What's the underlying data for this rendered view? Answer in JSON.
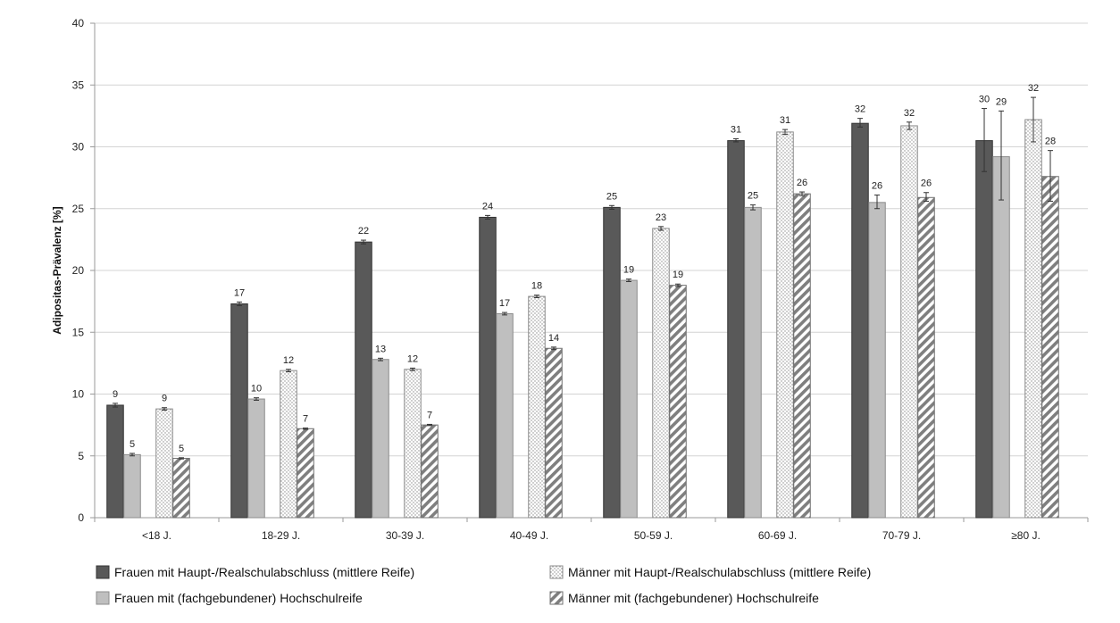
{
  "chart_data": {
    "type": "bar",
    "title": "",
    "xlabel": "",
    "ylabel": "Adipositas-Prävalenz [%]",
    "ylim": [
      0,
      40
    ],
    "yticks": [
      0,
      5,
      10,
      15,
      20,
      25,
      30,
      35,
      40
    ],
    "grid": true,
    "legend_position": "bottom",
    "categories": [
      "<18 J.",
      "18-29 J.",
      "30-39 J.",
      "40-49 J.",
      "50-59 J.",
      "60-69 J.",
      "70-79 J.",
      "≥80 J."
    ],
    "series": [
      {
        "name": "Frauen mit Haupt-/Realschulabschluss (mittlere Reife)",
        "pattern": "solid-dark",
        "color": "#595959",
        "values": [
          9.1,
          17.3,
          22.3,
          24.3,
          25.1,
          30.5,
          31.9,
          30.5
        ],
        "labels": [
          "9",
          "17",
          "22",
          "24",
          "25",
          "31",
          "32",
          "30"
        ],
        "err_low": [
          8.95,
          17.15,
          22.15,
          24.15,
          24.95,
          30.4,
          31.6,
          28.0
        ],
        "err_high": [
          9.25,
          17.45,
          22.45,
          24.45,
          25.25,
          30.65,
          32.3,
          33.1
        ]
      },
      {
        "name": "Frauen mit (fachgebundener) Hochschulreife",
        "pattern": "solid-light",
        "color": "#bfbfbf",
        "values": [
          5.1,
          9.6,
          12.8,
          16.5,
          19.2,
          25.1,
          25.5,
          29.2
        ],
        "labels": [
          "5",
          "10",
          "13",
          "17",
          "19",
          "25",
          "26",
          "29"
        ],
        "err_low": [
          5.0,
          9.5,
          12.7,
          16.4,
          19.1,
          24.9,
          25.0,
          25.7
        ],
        "err_high": [
          5.2,
          9.7,
          12.9,
          16.6,
          19.3,
          25.3,
          26.1,
          32.9
        ]
      },
      {
        "name": "Männer mit Haupt-/Realschulabschluss (mittlere Reife)",
        "pattern": "dotted",
        "color": "#ffffff",
        "values": [
          8.8,
          11.9,
          12.0,
          17.9,
          23.4,
          31.2,
          31.7,
          32.2
        ],
        "labels": [
          "9",
          "12",
          "12",
          "18",
          "23",
          "31",
          "32",
          "32"
        ],
        "err_low": [
          8.7,
          11.8,
          11.9,
          17.8,
          23.25,
          31.0,
          31.4,
          30.4
        ],
        "err_high": [
          8.9,
          12.0,
          12.1,
          18.0,
          23.55,
          31.4,
          32.0,
          34.0
        ]
      },
      {
        "name": "Männer mit (fachgebundener) Hochschulreife",
        "pattern": "hatched",
        "color": "#8c8c8c",
        "values": [
          4.8,
          7.2,
          7.5,
          13.7,
          18.8,
          26.2,
          25.9,
          27.6
        ],
        "labels": [
          "5",
          "7",
          "7",
          "14",
          "19",
          "26",
          "26",
          "28"
        ],
        "err_low": [
          4.75,
          7.15,
          7.45,
          13.6,
          18.7,
          26.05,
          25.6,
          25.6
        ],
        "err_high": [
          4.85,
          7.25,
          7.55,
          13.8,
          18.9,
          26.35,
          26.3,
          29.7
        ]
      }
    ]
  }
}
